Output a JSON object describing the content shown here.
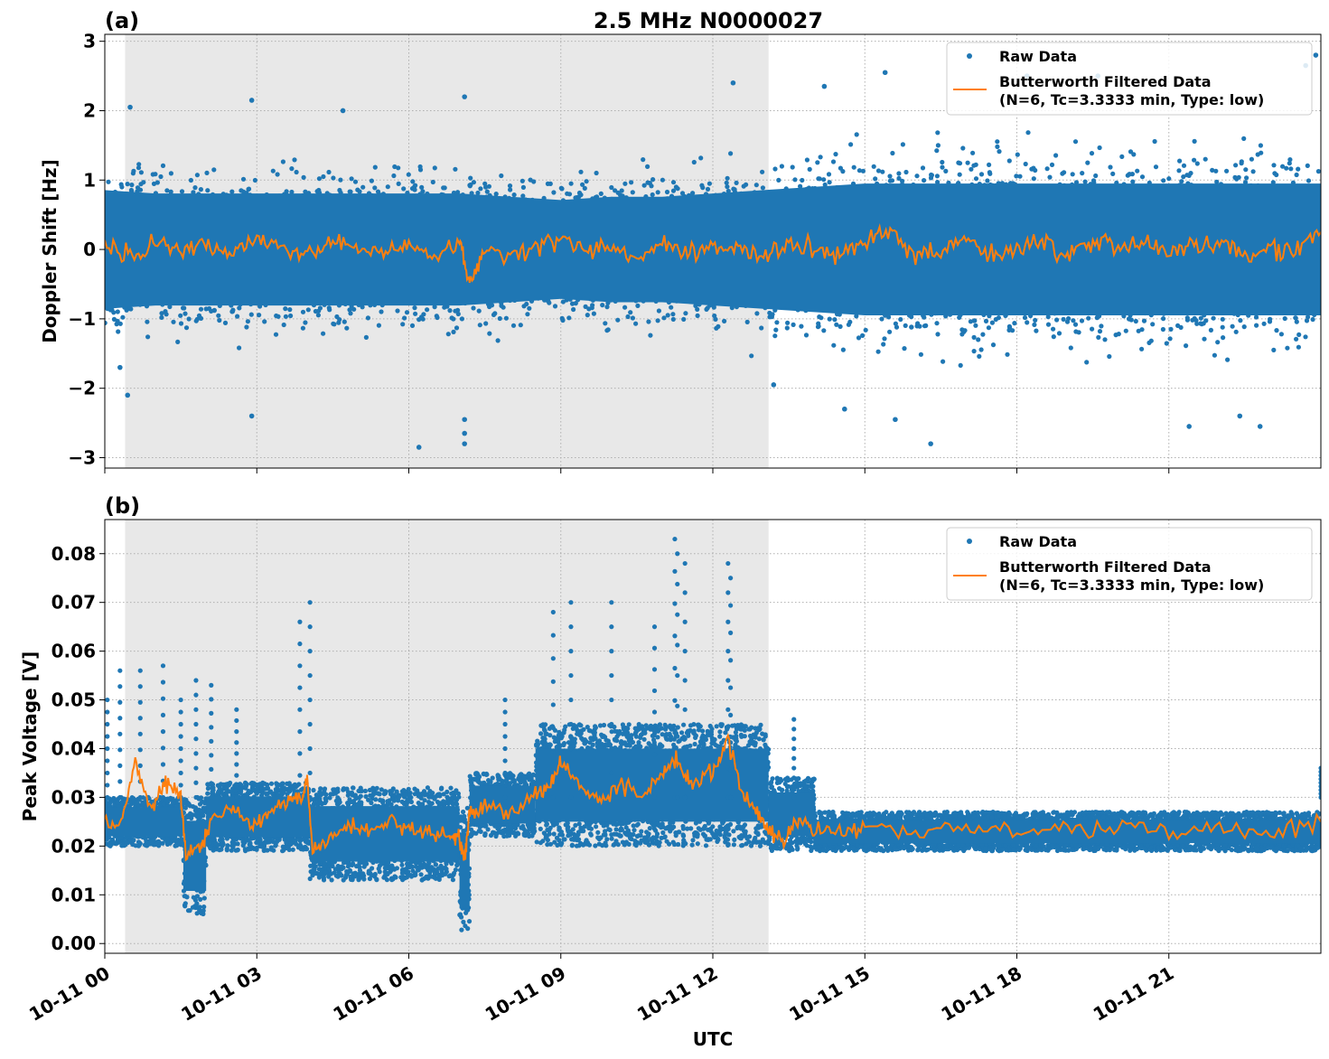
{
  "figure": {
    "title": "2.5 MHz N0000027",
    "xlabel": "UTC"
  },
  "colors": {
    "raw": "#1f77b4",
    "filtered": "#ff7f0e",
    "shade": "#e8e8e8",
    "grid": "#b0b0b0"
  },
  "chart_data": [
    {
      "type": "scatter",
      "panel_label": "(a)",
      "title": "2.5 MHz N0000027",
      "ylabel": "Doppler Shift [Hz]",
      "xlabel": "",
      "xlim_hours": [
        0,
        24
      ],
      "ylim": [
        -3.15,
        3.1
      ],
      "yticks": [
        -3,
        -2,
        -1,
        0,
        1,
        2,
        3
      ],
      "yticklabels": [
        "−3",
        "−2",
        "−1",
        "0",
        "1",
        "2",
        "3"
      ],
      "grid": true,
      "legend_location": "upper right",
      "shaded_region_hours": [
        0.4,
        13.1
      ],
      "legend": [
        "Raw Data",
        "Butterworth Filtered Data",
        "(N=6, Tc=3.3333 min, Type: low)"
      ],
      "series": [
        {
          "name": "Raw Data",
          "kind": "scatter",
          "x_hours": [
            0,
            1,
            2,
            3,
            4,
            5,
            6,
            7,
            8,
            9,
            10,
            11,
            12,
            13,
            14,
            15,
            16,
            17,
            18,
            19,
            20,
            21,
            22,
            23,
            24
          ],
          "center": [
            0,
            0,
            0,
            0,
            0,
            0,
            0,
            0,
            0,
            0,
            0,
            0,
            0,
            0,
            0,
            0,
            0,
            0,
            0,
            0,
            0,
            0,
            0,
            0,
            0
          ],
          "dense_half_width": [
            0.9,
            0.85,
            0.85,
            0.85,
            0.85,
            0.85,
            0.85,
            0.85,
            0.8,
            0.75,
            0.8,
            0.8,
            0.85,
            0.9,
            0.95,
            1.0,
            1.0,
            1.0,
            1.0,
            1.0,
            1.0,
            1.0,
            1.0,
            1.0,
            1.0
          ],
          "outliers": [
            [
              0.5,
              2.05
            ],
            [
              0.3,
              -1.7
            ],
            [
              0.45,
              -2.1
            ],
            [
              2.9,
              2.15
            ],
            [
              2.9,
              -2.4
            ],
            [
              4.7,
              2.0
            ],
            [
              6.2,
              -2.85
            ],
            [
              7.1,
              2.2
            ],
            [
              7.1,
              -2.8
            ],
            [
              7.1,
              -2.65
            ],
            [
              7.1,
              -2.45
            ],
            [
              12.4,
              2.4
            ],
            [
              13.2,
              -1.95
            ],
            [
              14.2,
              2.35
            ],
            [
              14.6,
              -2.3
            ],
            [
              15.4,
              2.55
            ],
            [
              15.6,
              -2.45
            ],
            [
              16.3,
              -2.8
            ],
            [
              18.2,
              2.5
            ],
            [
              19.6,
              2.5
            ],
            [
              21.4,
              -2.55
            ],
            [
              22.4,
              -2.4
            ],
            [
              22.8,
              -2.55
            ],
            [
              23.9,
              2.8
            ],
            [
              23.7,
              2.65
            ]
          ]
        },
        {
          "name": "Butterworth Filtered Data",
          "kind": "line",
          "x_hours": [
            0,
            0.5,
            1,
            1.5,
            2,
            2.5,
            3,
            3.5,
            4,
            4.5,
            5,
            5.5,
            6,
            6.5,
            7,
            7.2,
            7.5,
            8,
            8.5,
            9,
            9.5,
            10,
            10.5,
            11,
            11.5,
            12,
            12.5,
            13,
            13.5,
            14,
            14.5,
            15,
            15.5,
            16,
            16.5,
            17,
            17.5,
            18,
            18.5,
            19,
            19.5,
            20,
            20.5,
            21,
            21.5,
            22,
            22.5,
            23,
            23.5,
            24
          ],
          "y": [
            0.05,
            -0.1,
            0.1,
            -0.05,
            0.05,
            -0.1,
            0.15,
            0.0,
            -0.05,
            0.1,
            0.0,
            -0.05,
            0.05,
            -0.1,
            0.1,
            -0.5,
            0.0,
            -0.1,
            0.05,
            0.15,
            0.0,
            0.05,
            -0.1,
            0.1,
            -0.05,
            0.0,
            0.05,
            -0.1,
            0.1,
            0.0,
            -0.1,
            0.15,
            0.2,
            -0.05,
            0.0,
            0.15,
            -0.1,
            0.05,
            0.1,
            -0.05,
            0.15,
            0.0,
            0.1,
            -0.05,
            0.05,
            0.1,
            -0.1,
            0.05,
            0.0,
            0.25
          ]
        }
      ]
    },
    {
      "type": "scatter",
      "panel_label": "(b)",
      "title": "",
      "ylabel": "Peak Voltage [V]",
      "xlabel": "UTC",
      "xlim_hours": [
        0,
        24
      ],
      "ylim": [
        -0.002,
        0.087
      ],
      "yticks": [
        0.0,
        0.01,
        0.02,
        0.03,
        0.04,
        0.05,
        0.06,
        0.07,
        0.08
      ],
      "yticklabels": [
        "0.00",
        "0.01",
        "0.02",
        "0.03",
        "0.04",
        "0.05",
        "0.06",
        "0.07",
        "0.08"
      ],
      "xticks_hours": [
        0,
        3,
        6,
        9,
        12,
        15,
        18,
        21
      ],
      "xticklabels": [
        "10-11 00",
        "10-11 03",
        "10-11 06",
        "10-11 09",
        "10-11 12",
        "10-11 15",
        "10-11 18",
        "10-11 21"
      ],
      "grid": true,
      "legend_location": "upper right",
      "shaded_region_hours": [
        0.4,
        13.1
      ],
      "legend": [
        "Raw Data",
        "Butterworth Filtered Data",
        "(N=6, Tc=3.3333 min, Type: low)"
      ],
      "series": [
        {
          "name": "Raw Data",
          "kind": "scatter",
          "segments": [
            {
              "x_hours": [
                0.0,
                1.55
              ],
              "lo": 0.02,
              "hi": 0.03
            },
            {
              "x_hours": [
                1.55,
                2.0
              ],
              "lo": 0.006,
              "hi": 0.03
            },
            {
              "x_hours": [
                2.0,
                4.05
              ],
              "lo": 0.019,
              "hi": 0.033
            },
            {
              "x_hours": [
                4.05,
                7.0
              ],
              "lo": 0.013,
              "hi": 0.032
            },
            {
              "x_hours": [
                7.0,
                7.2
              ],
              "lo": 0.002,
              "hi": 0.028
            },
            {
              "x_hours": [
                7.2,
                8.5
              ],
              "lo": 0.022,
              "hi": 0.035
            },
            {
              "x_hours": [
                8.5,
                13.1
              ],
              "lo": 0.02,
              "hi": 0.045
            },
            {
              "x_hours": [
                13.1,
                14.0
              ],
              "lo": 0.019,
              "hi": 0.034
            },
            {
              "x_hours": [
                14.0,
                24.0
              ],
              "lo": 0.019,
              "hi": 0.027
            }
          ],
          "spikes": [
            [
              0.05,
              0.05
            ],
            [
              0.3,
              0.056
            ],
            [
              0.7,
              0.056
            ],
            [
              1.15,
              0.057
            ],
            [
              1.5,
              0.05
            ],
            [
              1.8,
              0.054
            ],
            [
              2.1,
              0.053
            ],
            [
              2.6,
              0.048
            ],
            [
              3.85,
              0.066
            ],
            [
              4.05,
              0.07
            ],
            [
              7.9,
              0.05
            ],
            [
              8.85,
              0.068
            ],
            [
              9.2,
              0.07
            ],
            [
              10.0,
              0.07
            ],
            [
              10.85,
              0.065
            ],
            [
              11.25,
              0.083
            ],
            [
              11.3,
              0.08
            ],
            [
              11.45,
              0.078
            ],
            [
              12.3,
              0.078
            ],
            [
              12.35,
              0.075
            ],
            [
              13.6,
              0.046
            ],
            [
              24.0,
              0.036
            ]
          ]
        },
        {
          "name": "Butterworth Filtered Data",
          "kind": "line",
          "x_hours": [
            0,
            0.3,
            0.6,
            0.9,
            1.2,
            1.5,
            1.6,
            1.9,
            2.1,
            2.5,
            2.9,
            3.2,
            3.6,
            3.9,
            4.0,
            4.1,
            4.4,
            4.8,
            5.2,
            5.6,
            6.0,
            6.4,
            6.8,
            7.0,
            7.1,
            7.2,
            7.5,
            8.0,
            8.5,
            8.8,
            9.0,
            9.4,
            9.8,
            10.2,
            10.6,
            11.0,
            11.3,
            11.6,
            12.0,
            12.3,
            12.6,
            12.9,
            13.1,
            13.4,
            13.7,
            14.0,
            14.5,
            15.0,
            16,
            17,
            18,
            19,
            20,
            21,
            22,
            23,
            24
          ],
          "y": [
            0.025,
            0.024,
            0.038,
            0.027,
            0.033,
            0.03,
            0.018,
            0.02,
            0.025,
            0.028,
            0.024,
            0.026,
            0.029,
            0.03,
            0.034,
            0.018,
            0.022,
            0.024,
            0.023,
            0.025,
            0.024,
            0.023,
            0.022,
            0.021,
            0.017,
            0.027,
            0.028,
            0.027,
            0.03,
            0.033,
            0.037,
            0.032,
            0.029,
            0.033,
            0.03,
            0.035,
            0.038,
            0.032,
            0.036,
            0.042,
            0.03,
            0.027,
            0.023,
            0.021,
            0.026,
            0.023,
            0.023,
            0.0235,
            0.023,
            0.0235,
            0.023,
            0.0235,
            0.0235,
            0.023,
            0.0235,
            0.023,
            0.025
          ]
        }
      ]
    }
  ]
}
